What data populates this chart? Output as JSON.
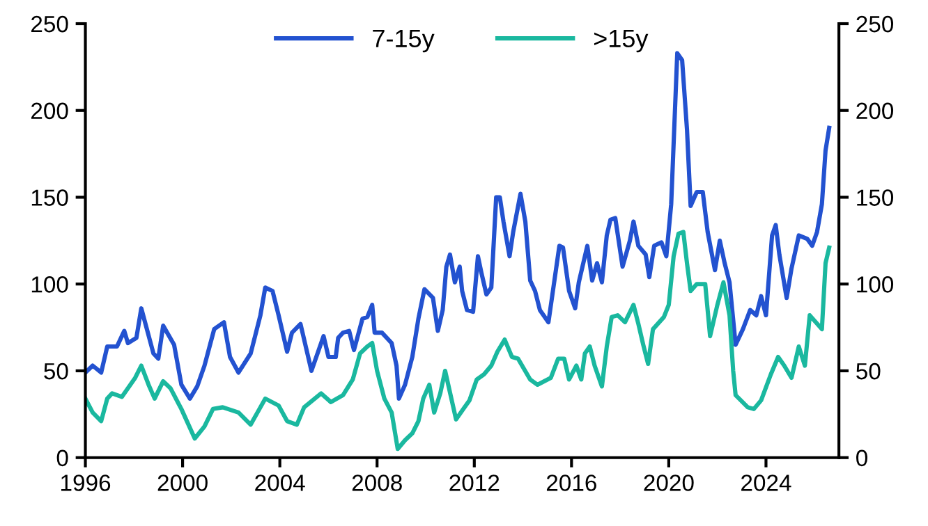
{
  "chart_data": {
    "type": "line",
    "legend": "top",
    "grid": false,
    "marker": "none",
    "line_style": "solid",
    "xlim": [
      1996,
      2027
    ],
    "xticks": [
      1996,
      2000,
      2004,
      2008,
      2012,
      2016,
      2020,
      2024
    ],
    "ylim": [
      0,
      250
    ],
    "yticks": [
      0,
      50,
      100,
      150,
      200,
      250
    ],
    "y2lim": [
      0,
      250
    ],
    "y2ticks": [
      0,
      50,
      100,
      150,
      200,
      250
    ],
    "series": [
      {
        "name": "7-15y",
        "color": "#2352d0",
        "x": [
          1996.0,
          1996.3,
          1996.65,
          1996.9,
          1997.3,
          1997.6,
          1997.75,
          1998.1,
          1998.3,
          1998.8,
          1999.0,
          1999.2,
          1999.65,
          1999.95,
          2000.3,
          2000.6,
          2000.9,
          2001.3,
          2001.7,
          2001.95,
          2002.3,
          2002.8,
          2003.2,
          2003.4,
          2003.7,
          2003.95,
          2004.3,
          2004.5,
          2004.85,
          2005.3,
          2005.5,
          2005.8,
          2006.0,
          2006.3,
          2006.4,
          2006.6,
          2006.85,
          2007.05,
          2007.4,
          2007.6,
          2007.8,
          2007.9,
          2008.2,
          2008.6,
          2008.8,
          2008.9,
          2009.15,
          2009.45,
          2009.7,
          2009.95,
          2010.3,
          2010.5,
          2010.7,
          2010.85,
          2011.0,
          2011.2,
          2011.4,
          2011.5,
          2011.7,
          2011.95,
          2012.15,
          2012.3,
          2012.5,
          2012.7,
          2012.9,
          2013.05,
          2013.2,
          2013.45,
          2013.6,
          2013.9,
          2014.1,
          2014.3,
          2014.5,
          2014.7,
          2015.05,
          2015.5,
          2015.65,
          2015.9,
          2016.15,
          2016.3,
          2016.65,
          2016.85,
          2017.05,
          2017.25,
          2017.45,
          2017.6,
          2017.8,
          2018.1,
          2018.4,
          2018.55,
          2018.75,
          2019.05,
          2019.2,
          2019.4,
          2019.7,
          2019.9,
          2020.1,
          2020.35,
          2020.55,
          2020.75,
          2020.9,
          2021.15,
          2021.4,
          2021.6,
          2021.9,
          2022.1,
          2022.3,
          2022.5,
          2022.75,
          2023.05,
          2023.35,
          2023.6,
          2023.8,
          2024.0,
          2024.25,
          2024.4,
          2024.55,
          2024.85,
          2025.05,
          2025.35,
          2025.7,
          2025.9,
          2026.1,
          2026.3,
          2026.45,
          2026.6
        ],
        "values": [
          49,
          53,
          49,
          64,
          64,
          73,
          66,
          69,
          86,
          60,
          57,
          76,
          65,
          42,
          34,
          41,
          53,
          74,
          78,
          58,
          49,
          60,
          82,
          98,
          96,
          82,
          61,
          72,
          77,
          50,
          58,
          70,
          58,
          58,
          69,
          72,
          73,
          62,
          80,
          81,
          88,
          72,
          72,
          66,
          53,
          34,
          42,
          58,
          80,
          97,
          92,
          73,
          85,
          110,
          117,
          101,
          110,
          96,
          85,
          84,
          116,
          106,
          94,
          98,
          150,
          150,
          136,
          116,
          130,
          152,
          136,
          102,
          96,
          85,
          78,
          122,
          121,
          96,
          86,
          101,
          122,
          102,
          112,
          101,
          128,
          137,
          138,
          110,
          125,
          136,
          122,
          117,
          104,
          122,
          124,
          116,
          146,
          233,
          229,
          189,
          145,
          153,
          153,
          130,
          108,
          125,
          112,
          101,
          65,
          74,
          85,
          82,
          93,
          82,
          128,
          134,
          117,
          92,
          109,
          128,
          126,
          122,
          130,
          146,
          177,
          190
        ]
      },
      {
        "name": ">15y",
        "color": "#1ab89f",
        "x": [
          1996.0,
          1996.3,
          1996.65,
          1996.9,
          1997.1,
          1997.5,
          1998.05,
          1998.3,
          1998.6,
          1998.85,
          1999.2,
          1999.5,
          1999.95,
          2000.5,
          2000.9,
          2001.25,
          2001.65,
          2002.3,
          2002.8,
          2003.2,
          2003.4,
          2003.95,
          2004.3,
          2004.7,
          2005.0,
          2005.7,
          2006.1,
          2006.6,
          2007.0,
          2007.3,
          2007.6,
          2007.8,
          2008.0,
          2008.3,
          2008.6,
          2008.85,
          2009.15,
          2009.45,
          2009.7,
          2009.9,
          2010.15,
          2010.35,
          2010.6,
          2010.8,
          2011.25,
          2011.55,
          2011.8,
          2012.1,
          2012.4,
          2012.7,
          2012.95,
          2013.25,
          2013.55,
          2013.8,
          2014.3,
          2014.6,
          2015.15,
          2015.45,
          2015.7,
          2015.9,
          2016.2,
          2016.4,
          2016.55,
          2016.75,
          2016.95,
          2017.25,
          2017.45,
          2017.65,
          2017.9,
          2018.2,
          2018.55,
          2018.75,
          2018.95,
          2019.15,
          2019.35,
          2019.8,
          2020.0,
          2020.2,
          2020.4,
          2020.6,
          2020.75,
          2020.9,
          2021.15,
          2021.5,
          2021.7,
          2022.0,
          2022.25,
          2022.5,
          2022.65,
          2022.75,
          2023.25,
          2023.5,
          2023.8,
          2024.2,
          2024.5,
          2024.75,
          2025.05,
          2025.35,
          2025.6,
          2025.8,
          2026.3,
          2026.45,
          2026.6
        ],
        "values": [
          34,
          26,
          21,
          34,
          37,
          35,
          46,
          53,
          42,
          34,
          44,
          40,
          28,
          11,
          18,
          28,
          29,
          26,
          19,
          29,
          34,
          30,
          21,
          19,
          29,
          37,
          32,
          36,
          45,
          60,
          64,
          66,
          50,
          34,
          26,
          5,
          10,
          14,
          21,
          34,
          42,
          26,
          37,
          50,
          22,
          28,
          33,
          45,
          48,
          53,
          61,
          68,
          58,
          57,
          45,
          42,
          46,
          57,
          57,
          45,
          53,
          45,
          60,
          64,
          53,
          41,
          64,
          81,
          82,
          78,
          88,
          77,
          65,
          54,
          74,
          81,
          88,
          116,
          129,
          130,
          112,
          96,
          100,
          100,
          70,
          88,
          101,
          82,
          50,
          36,
          29,
          28,
          33,
          48,
          58,
          53,
          46,
          64,
          53,
          82,
          74,
          112,
          121
        ]
      }
    ]
  }
}
